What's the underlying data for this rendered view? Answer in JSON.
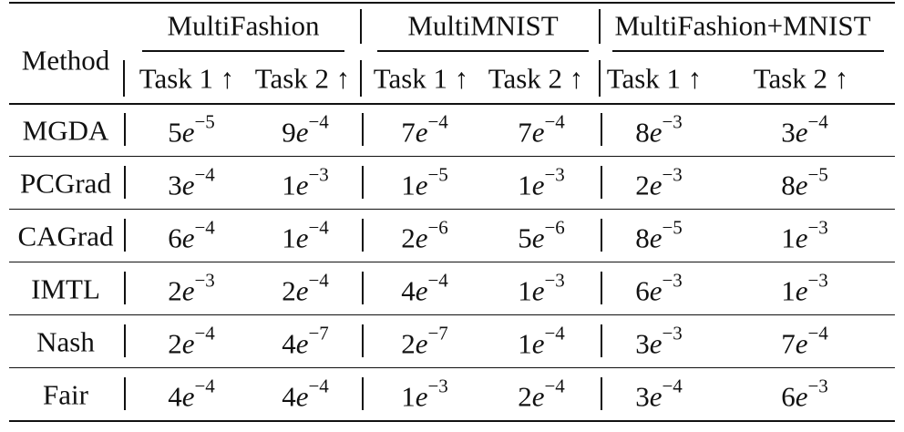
{
  "table": {
    "method_header": "Method",
    "groups": [
      {
        "label": "MultiFashion"
      },
      {
        "label": "MultiMNIST"
      },
      {
        "label": "MultiFashion+MNIST"
      }
    ],
    "task_headers": [
      "Task 1 ↑",
      "Task 2 ↑",
      "Task 1 ↑",
      "Task 2 ↑",
      "Task 1 ↑",
      "Task 2 ↑"
    ],
    "rows": [
      {
        "method": "MGDA",
        "values": [
          {
            "m": "5",
            "x": "−5"
          },
          {
            "m": "9",
            "x": "−4"
          },
          {
            "m": "7",
            "x": "−4"
          },
          {
            "m": "7",
            "x": "−4"
          },
          {
            "m": "8",
            "x": "−3"
          },
          {
            "m": "3",
            "x": "−4"
          }
        ]
      },
      {
        "method": "PCGrad",
        "values": [
          {
            "m": "3",
            "x": "−4"
          },
          {
            "m": "1",
            "x": "−3"
          },
          {
            "m": "1",
            "x": "−5"
          },
          {
            "m": "1",
            "x": "−3"
          },
          {
            "m": "2",
            "x": "−3"
          },
          {
            "m": "8",
            "x": "−5"
          }
        ]
      },
      {
        "method": "CAGrad",
        "values": [
          {
            "m": "6",
            "x": "−4"
          },
          {
            "m": "1",
            "x": "−4"
          },
          {
            "m": "2",
            "x": "−6"
          },
          {
            "m": "5",
            "x": "−6"
          },
          {
            "m": "8",
            "x": "−5"
          },
          {
            "m": "1",
            "x": "−3"
          }
        ]
      },
      {
        "method": "IMTL",
        "values": [
          {
            "m": "2",
            "x": "−3"
          },
          {
            "m": "2",
            "x": "−4"
          },
          {
            "m": "4",
            "x": "−4"
          },
          {
            "m": "1",
            "x": "−3"
          },
          {
            "m": "6",
            "x": "−3"
          },
          {
            "m": "1",
            "x": "−3"
          }
        ]
      },
      {
        "method": "Nash",
        "values": [
          {
            "m": "2",
            "x": "−4"
          },
          {
            "m": "4",
            "x": "−7"
          },
          {
            "m": "2",
            "x": "−7"
          },
          {
            "m": "1",
            "x": "−4"
          },
          {
            "m": "3",
            "x": "−3"
          },
          {
            "m": "7",
            "x": "−4"
          }
        ]
      },
      {
        "method": "Fair",
        "values": [
          {
            "m": "4",
            "x": "−4"
          },
          {
            "m": "4",
            "x": "−4"
          },
          {
            "m": "1",
            "x": "−3"
          },
          {
            "m": "2",
            "x": "−4"
          },
          {
            "m": "3",
            "x": "−4"
          },
          {
            "m": "6",
            "x": "−3"
          }
        ]
      }
    ],
    "exponent_base": "e"
  }
}
